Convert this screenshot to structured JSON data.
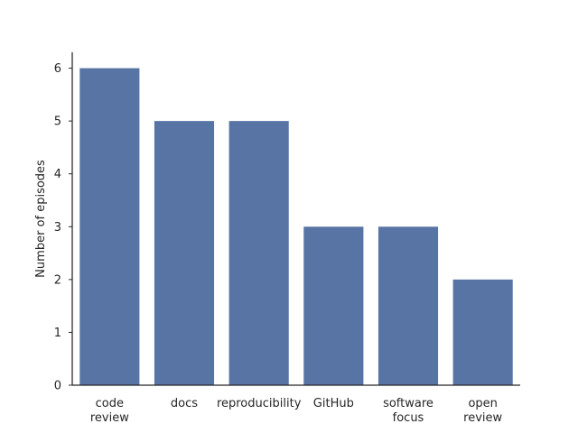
{
  "chart_data": {
    "type": "bar",
    "categories": [
      [
        "code",
        "review"
      ],
      [
        "docs"
      ],
      [
        "reproducibility"
      ],
      [
        "GitHub"
      ],
      [
        "software",
        "focus"
      ],
      [
        "open",
        "review"
      ]
    ],
    "values": [
      6,
      5,
      5,
      3,
      3,
      2
    ],
    "ylabel": "Number of episodes",
    "xlabel": "",
    "ylim": [
      0,
      6.3
    ],
    "yticks": [
      0,
      1,
      2,
      3,
      4,
      5,
      6
    ],
    "bar_color": "#5874A4",
    "grid": false
  }
}
